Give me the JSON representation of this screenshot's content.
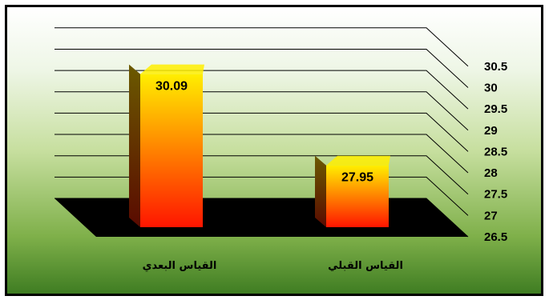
{
  "chart_data": {
    "type": "bar",
    "categories": [
      "القياس البعدي",
      "القياس القبلي"
    ],
    "values": [
      30.09,
      27.95
    ],
    "value_labels": [
      "30.09",
      "27.95"
    ],
    "ylim": [
      26.5,
      30.5
    ],
    "yticks": [
      "26.5",
      "27",
      "27.5",
      "28",
      "28.5",
      "29",
      "29.5",
      "30",
      "30.5"
    ],
    "grid": true,
    "three_d": true,
    "colors": {
      "bar_top": "#ffee00",
      "bar_bottom": "#ff1500",
      "floor": "#000000",
      "background_top": "#ffffff",
      "background_bottom": "#3f7d22"
    }
  }
}
